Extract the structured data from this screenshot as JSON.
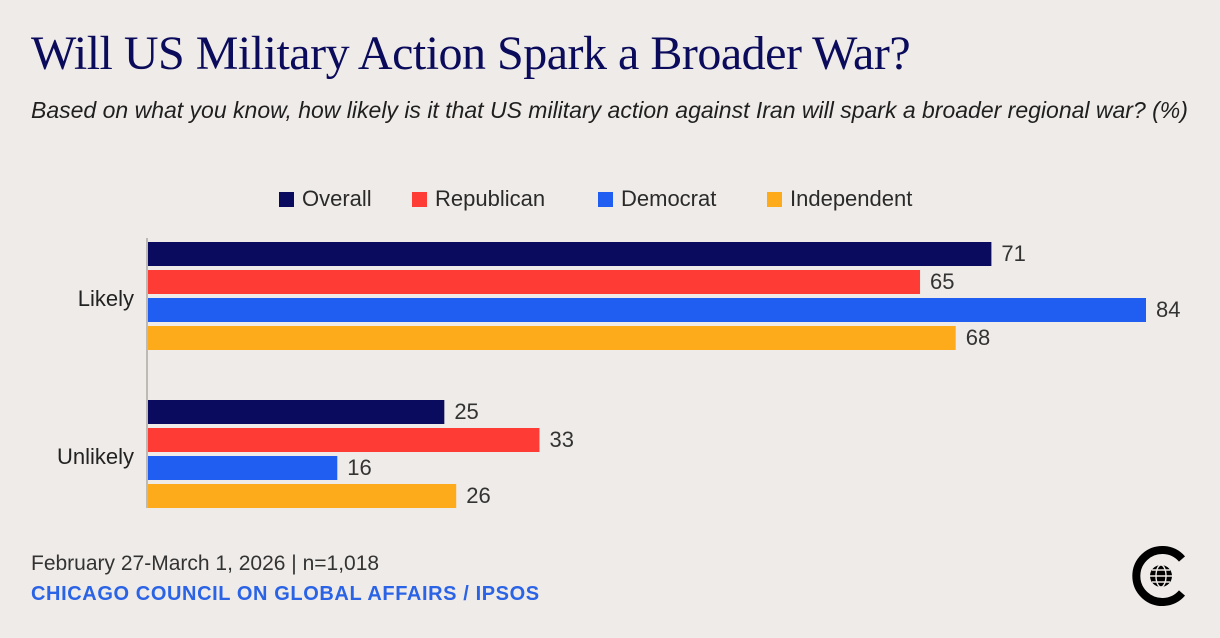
{
  "title": "Will US Military Action Spark a Broader War?",
  "subtitle": "Based on what you know, how likely is it that US military action against Iran will spark a broader regional war? (%)",
  "colors": {
    "overall": "#0a0a5e",
    "republican": "#ff3b35",
    "democrat": "#1f5ef0",
    "independent": "#fdab1a",
    "background": "#efebe8"
  },
  "legend": [
    {
      "label": "Overall",
      "color": "#0a0a5e"
    },
    {
      "label": "Republican",
      "color": "#ff3b35"
    },
    {
      "label": "Democrat",
      "color": "#1f5ef0"
    },
    {
      "label": "Independent",
      "color": "#fdab1a"
    }
  ],
  "chart_data": {
    "type": "bar",
    "orientation": "horizontal",
    "title": "Will US Military Action Spark a Broader War?",
    "categories": [
      "Likely",
      "Unlikely"
    ],
    "series": [
      {
        "name": "Overall",
        "color": "#0a0a5e",
        "values": [
          71,
          25
        ]
      },
      {
        "name": "Republican",
        "color": "#ff3b35",
        "values": [
          65,
          33
        ]
      },
      {
        "name": "Democrat",
        "color": "#1f5ef0",
        "values": [
          84,
          16
        ]
      },
      {
        "name": "Independent",
        "color": "#fdab1a",
        "values": [
          68,
          26
        ]
      }
    ],
    "xlim": [
      0,
      84
    ],
    "xlabel": "",
    "ylabel": "",
    "grid": false,
    "legend_position": "top-center"
  },
  "footer": {
    "date_sample": "February 27-March 1, 2026 | n=1,018",
    "source": "CHICAGO COUNCIL ON GLOBAL AFFAIRS / IPSOS"
  },
  "logo_icon": "chicago-council-globe-logo-icon"
}
